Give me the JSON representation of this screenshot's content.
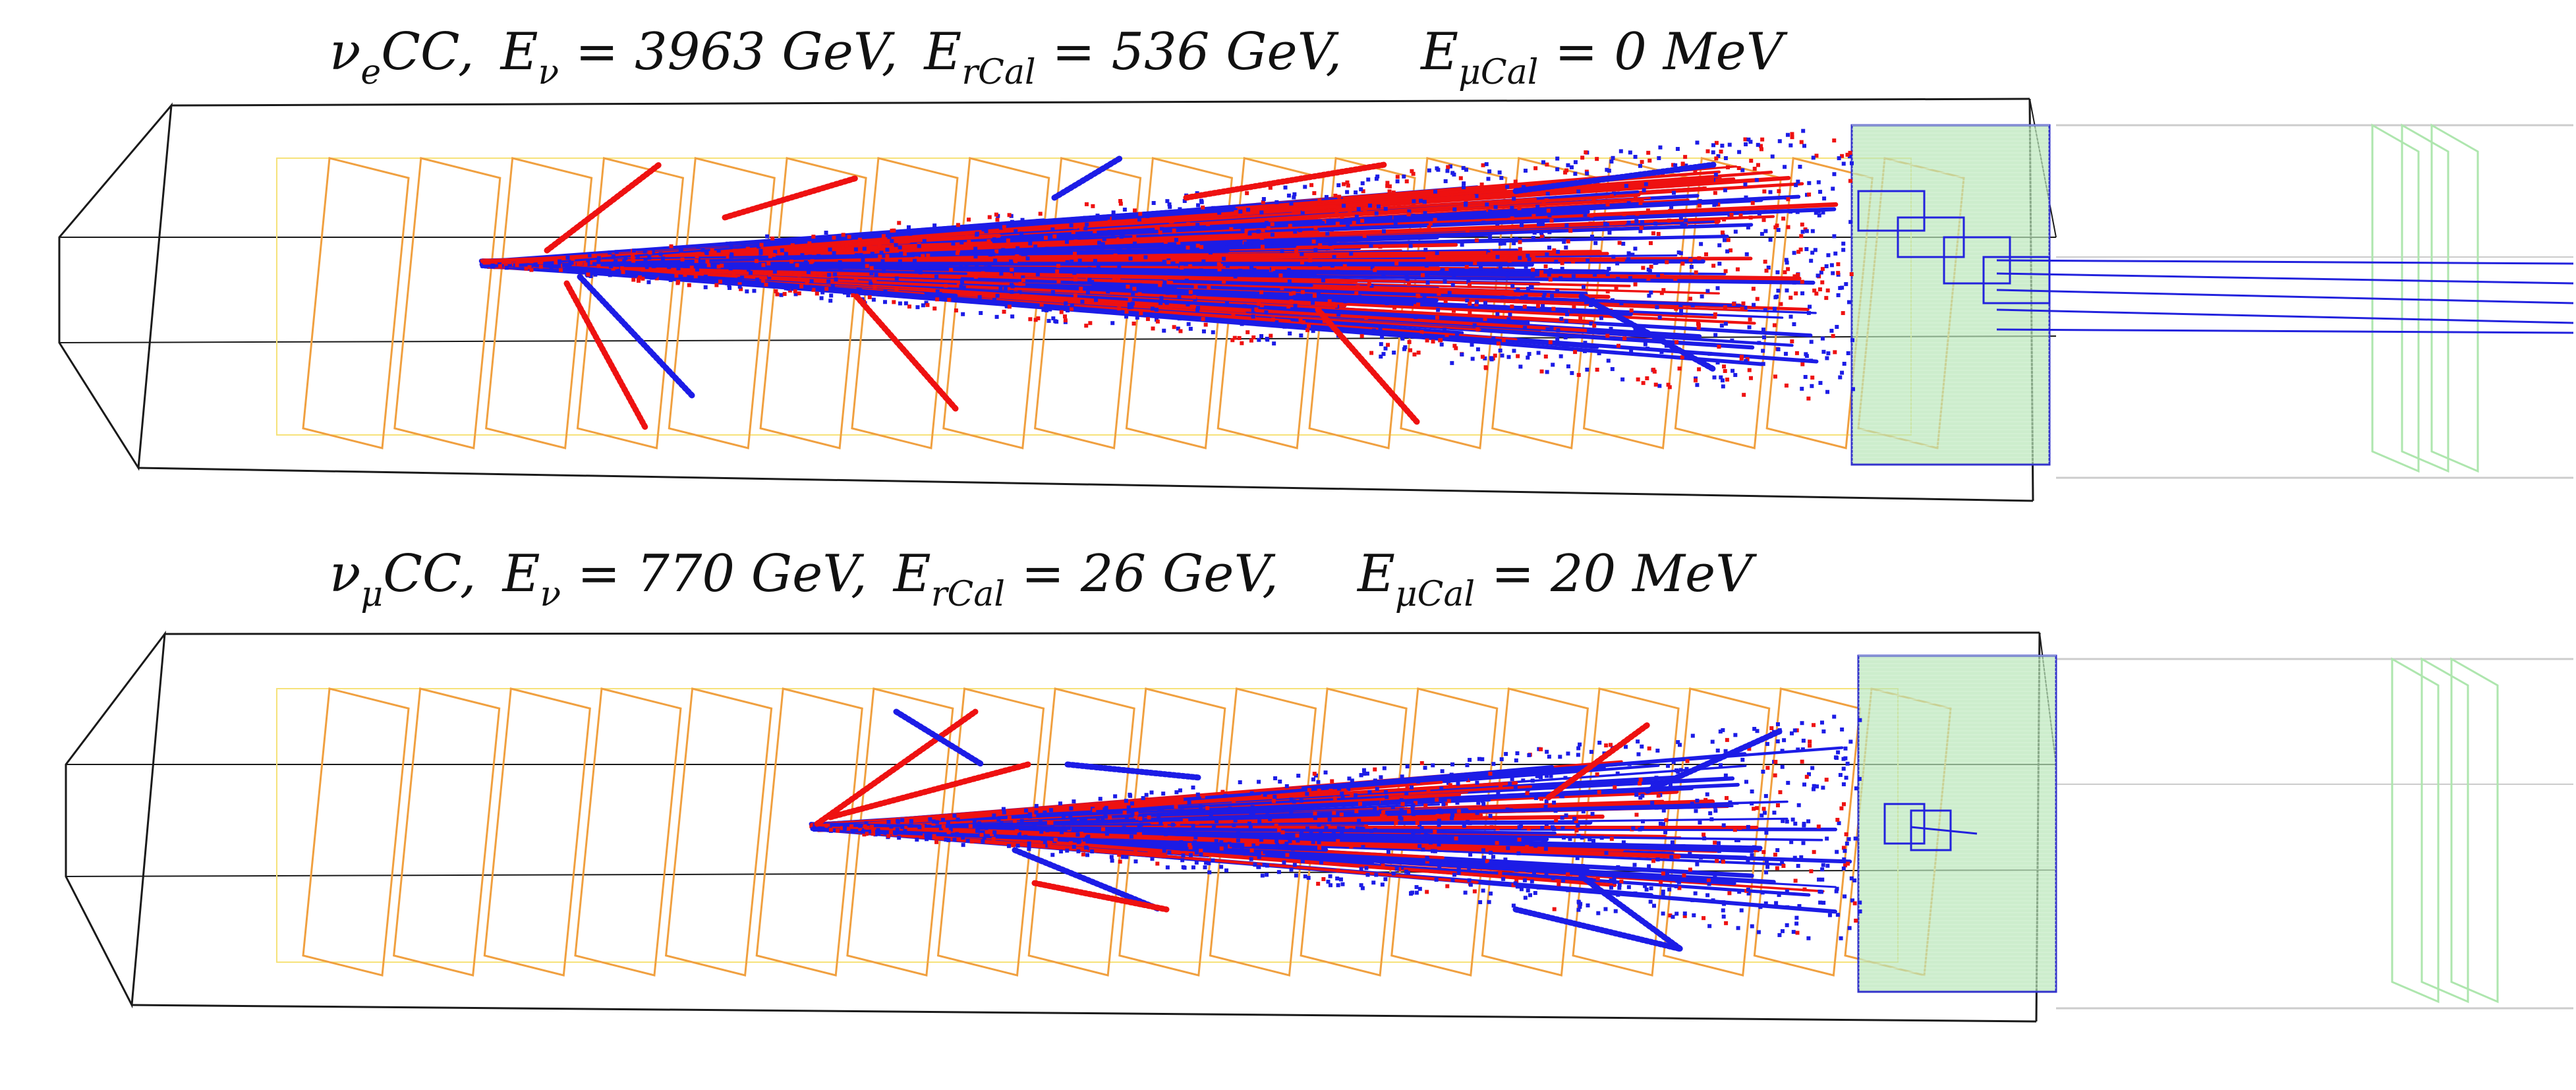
{
  "events": [
    {
      "id": "nue",
      "nu_symbol": "ν",
      "nu_sub": "e",
      "interaction": "CC,",
      "ev_label": "E",
      "ev_sub": "ν",
      "ev_value": "= 3963 GeV,",
      "ercal_label": "E",
      "ercal_sub": "rCal",
      "ercal_value": "= 536 GeV,",
      "emucal_label": "E",
      "emucal_sub": "μCal",
      "emucal_value": "= 0 MeV"
    },
    {
      "id": "numu",
      "nu_symbol": "ν",
      "nu_sub": "μ",
      "interaction": "CC,",
      "ev_label": "E",
      "ev_sub": "ν",
      "ev_value": "= 770 GeV,",
      "ercal_label": "E",
      "ercal_sub": "rCal",
      "ercal_value": "= 26 GeV,",
      "emucal_label": "E",
      "emucal_sub": "μCal",
      "emucal_value": "= 20 MeV"
    }
  ],
  "colors": {
    "detector_frame": "#1a1a1a",
    "tungsten_plates": "#f0a040",
    "plate_outline": "#f6e27a",
    "shower_red": "#ee1111",
    "shower_blue": "#1c1ce6",
    "calorimeter": "#b8e6b8",
    "muon_station": "#aee6ae",
    "muon_track": "#2222dd",
    "far_box": "#cccccc"
  }
}
